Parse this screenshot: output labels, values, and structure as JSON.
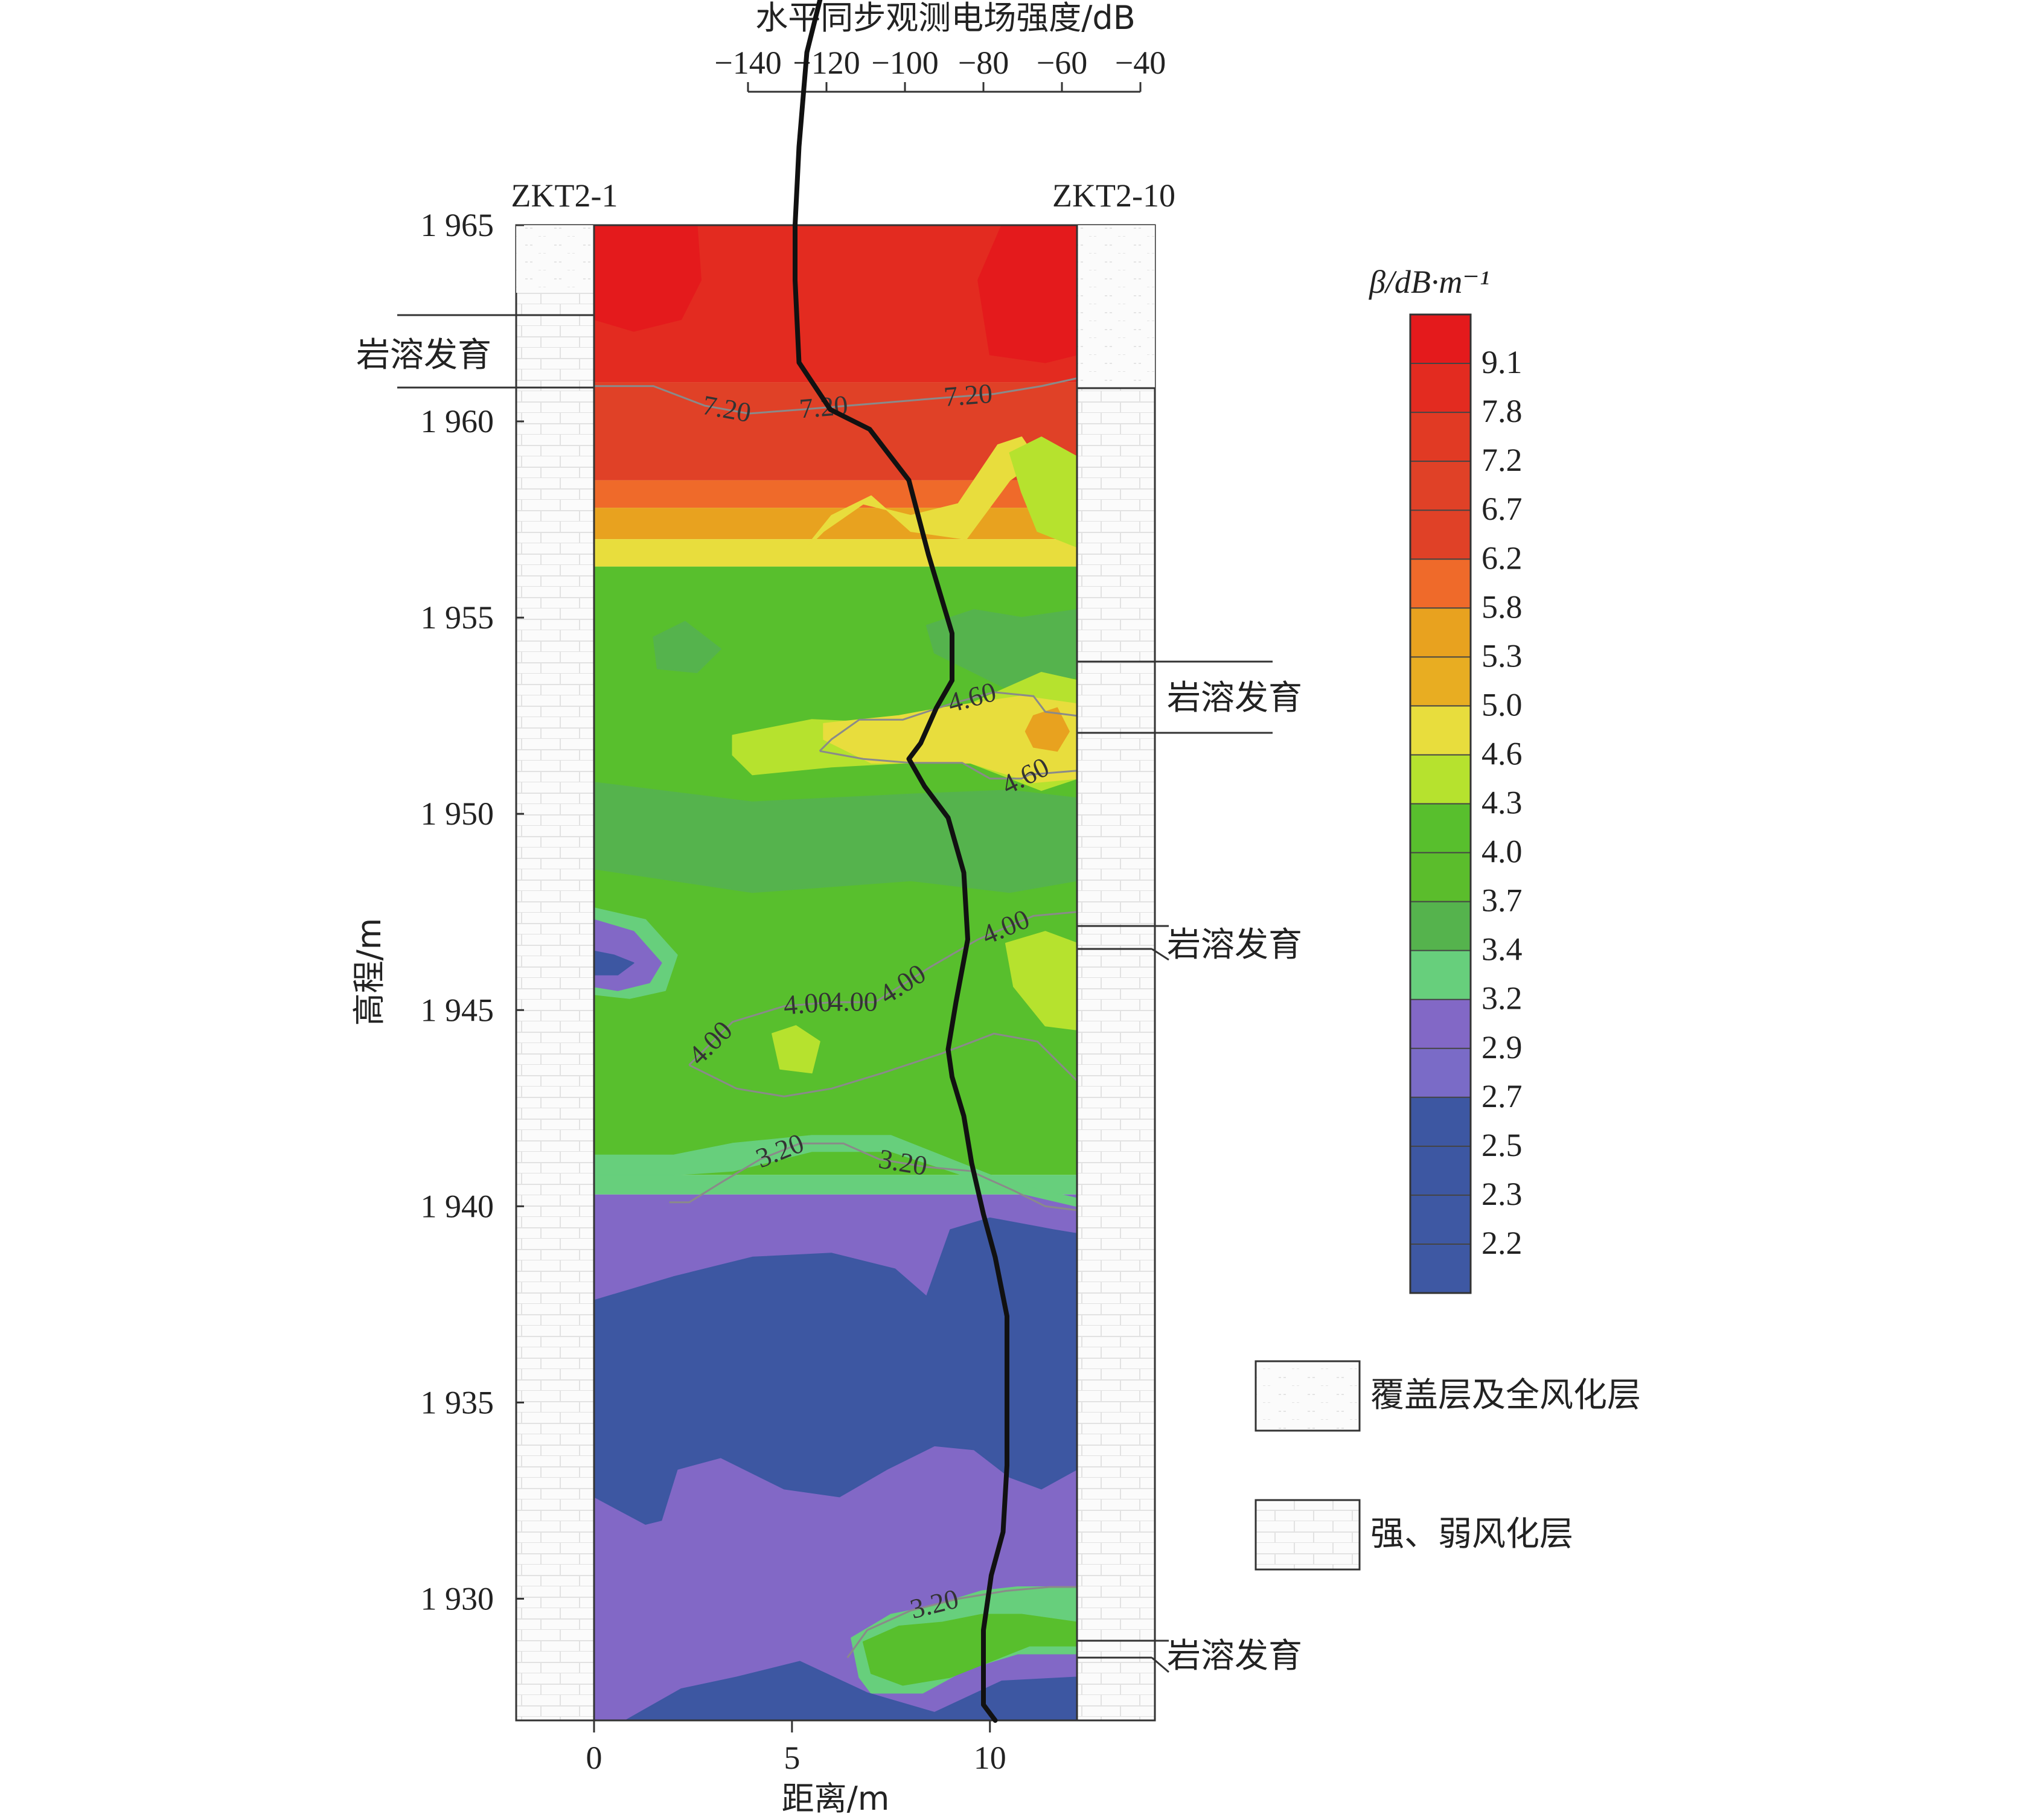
{
  "chart_data": {
    "type": "heatmap",
    "title": "",
    "xlabel": "距离/m",
    "ylabel": "高程/m",
    "xlim": [
      0,
      12.2
    ],
    "ylim": [
      1926.9,
      1965
    ],
    "x_ticks": [
      "0",
      "5",
      "10"
    ],
    "x_tick_values": [
      0,
      5,
      10
    ],
    "y_ticks": [
      "1 965",
      "1 960",
      "1 955",
      "1 950",
      "1 945",
      "1 940",
      "1 935",
      "1 930"
    ],
    "y_tick_values": [
      1965,
      1960,
      1955,
      1950,
      1945,
      1940,
      1935,
      1930
    ],
    "boreholes": {
      "left": "ZKT2-1",
      "right": "ZKT2-10"
    },
    "colorbar": {
      "title": "β/dB·m⁻¹",
      "labels": [
        "9.1",
        "7.8",
        "7.2",
        "6.7",
        "6.2",
        "5.8",
        "5.3",
        "5.0",
        "4.6",
        "4.3",
        "4.0",
        "3.7",
        "3.4",
        "3.2",
        "2.9",
        "2.7",
        "2.5",
        "2.3",
        "2.2"
      ],
      "colors": [
        "#e41a1c",
        "#e32b20",
        "#e13a24",
        "#e04127",
        "#e04127",
        "#ef6a2a",
        "#e8a21f",
        "#e8ad22",
        "#e8dd3d",
        "#b6e22e",
        "#58bf2d",
        "#5bbd2c",
        "#55b34d",
        "#67cf7c",
        "#8268c6",
        "#7a6bc7",
        "#3d57a2",
        "#3d57a2",
        "#3e58a3",
        "#3e58a3"
      ]
    },
    "heatmap_bands": [
      {
        "from": 1965.0,
        "to": 1961.0,
        "color": "#e32b20"
      },
      {
        "from": 1961.0,
        "to": 1958.5,
        "color": "#e04127"
      },
      {
        "from": 1958.5,
        "to": 1957.8,
        "color": "#ef6a2a"
      },
      {
        "from": 1957.8,
        "to": 1957.0,
        "color": "#e8a21f"
      },
      {
        "from": 1957.0,
        "to": 1956.3,
        "color": "#e8dd3d"
      },
      {
        "from": 1956.3,
        "to": 1940.8,
        "color": "#58bf2d"
      },
      {
        "from": 1940.8,
        "to": 1940.3,
        "color": "#67cf7c"
      },
      {
        "from": 1940.3,
        "to": 1926.9,
        "color": "#8268c6"
      }
    ],
    "heatmap_patches": [
      {
        "label": "red-left",
        "color": "#e41a1c",
        "x": [
          0,
          0.9,
          2.6,
          2.7,
          2.2,
          1.0,
          0
        ],
        "y": [
          1965,
          1965,
          1965,
          1963.6,
          1962.6,
          1962.3,
          1962.6
        ]
      },
      {
        "label": "red-right",
        "color": "#e41a1c",
        "x": [
          10.3,
          12.2,
          12.2,
          11.4,
          10.0,
          9.7
        ],
        "y": [
          1965,
          1965,
          1961.7,
          1961.5,
          1961.7,
          1963.6
        ]
      },
      {
        "label": "yellow-top-mid",
        "color": "#e8dd3d",
        "x": [
          5.2,
          6.0,
          7.0,
          8.0,
          9.4,
          10.5,
          11.2,
          10.8,
          10.2,
          9.2,
          8.0,
          6.8,
          5.8
        ],
        "y": [
          1956.6,
          1957.6,
          1958.1,
          1957.2,
          1957.0,
          1958.5,
          1959.0,
          1959.6,
          1959.4,
          1957.9,
          1957.6,
          1957.9,
          1957.2
        ]
      },
      {
        "label": "green-light-top-right",
        "color": "#b6e22e",
        "x": [
          10.5,
          11.3,
          12.2,
          12.2,
          11.2,
          10.8
        ],
        "y": [
          1959.2,
          1959.6,
          1959.1,
          1956.8,
          1957.2,
          1958.2
        ]
      },
      {
        "label": "green-dark-upper-right",
        "color": "#55b34d",
        "x": [
          8.4,
          9.6,
          10.8,
          12.2,
          12.2,
          10.8,
          9.6,
          8.6
        ],
        "y": [
          1954.8,
          1955.2,
          1955.0,
          1955.2,
          1953.5,
          1953.0,
          1953.6,
          1954.1
        ]
      },
      {
        "label": "green-dark-left",
        "color": "#55b34d",
        "x": [
          1.5,
          2.3,
          3.2,
          2.6,
          1.6
        ],
        "y": [
          1954.5,
          1954.9,
          1954.2,
          1953.6,
          1953.7
        ]
      },
      {
        "label": "light-green-4.6",
        "color": "#b6e22e",
        "x": [
          3.5,
          5.5,
          7.6,
          9.5,
          11.3,
          12.2,
          12.2,
          11.3,
          9.5,
          7.8,
          6.0,
          4.0,
          3.5
        ],
        "y": [
          1952.0,
          1952.4,
          1952.3,
          1952.8,
          1953.6,
          1953.4,
          1950.9,
          1950.6,
          1951.3,
          1951.3,
          1951.2,
          1951.0,
          1951.5
        ]
      },
      {
        "label": "yellow-4.6",
        "color": "#e8dd3d",
        "x": [
          5.8,
          7.7,
          8.8,
          10.8,
          12.2,
          12.2,
          11.1,
          9.5,
          7.0,
          5.8
        ],
        "y": [
          1952.3,
          1952.5,
          1952.7,
          1953.0,
          1952.8,
          1950.9,
          1950.8,
          1951.3,
          1951.3,
          1951.9
        ]
      },
      {
        "label": "orange-spot-right",
        "color": "#e8a21f",
        "x": [
          11.1,
          11.7,
          12.0,
          11.7,
          11.1,
          10.9
        ],
        "y": [
          1952.5,
          1952.7,
          1952.1,
          1951.6,
          1951.7,
          1952.1
        ]
      },
      {
        "label": "green-mid-upper-band",
        "color": "#55b34d",
        "x": [
          0,
          4.0,
          8.0,
          10.5,
          12.2,
          12.2,
          10.5,
          8.0,
          4.0,
          0
        ],
        "y": [
          1950.8,
          1950.3,
          1950.5,
          1950.6,
          1950.4,
          1948.3,
          1948.0,
          1948.3,
          1948.0,
          1948.6
        ]
      },
      {
        "label": "purple-left-1946",
        "color": "#67cf7c",
        "x": [
          0,
          1.3,
          2.1,
          1.8,
          0.9,
          0
        ],
        "y": [
          1947.6,
          1947.3,
          1946.4,
          1945.5,
          1945.3,
          1945.4
        ]
      },
      {
        "label": "purple-left-inner",
        "color": "#8268c6",
        "x": [
          0,
          1.0,
          1.7,
          1.4,
          0.6,
          0
        ],
        "y": [
          1947.3,
          1947.0,
          1946.2,
          1945.7,
          1945.5,
          1945.6
        ]
      },
      {
        "label": "blue-left-spot",
        "color": "#3d57a2",
        "x": [
          0,
          0.5,
          1.0,
          0.6,
          0
        ],
        "y": [
          1946.5,
          1946.4,
          1946.2,
          1945.9,
          1945.9
        ]
      },
      {
        "label": "light-green-right-1946",
        "color": "#b6e22e",
        "x": [
          10.4,
          11.4,
          12.2,
          12.2,
          11.4,
          10.6
        ],
        "y": [
          1946.7,
          1947.0,
          1946.7,
          1944.5,
          1944.6,
          1945.6
        ]
      },
      {
        "label": "light-green-spot-1944",
        "color": "#b6e22e",
        "x": [
          4.5,
          5.1,
          5.7,
          5.5,
          4.7
        ],
        "y": [
          1944.4,
          1944.6,
          1944.2,
          1943.4,
          1943.5
        ]
      },
      {
        "label": "teal-1940-band",
        "color": "#67cf7c",
        "x": [
          0,
          2.0,
          3.5,
          5.5,
          7.5,
          9.0,
          10.5,
          12.2,
          12.2,
          10.5,
          9.0,
          7.5,
          5.5,
          3.5,
          2.0,
          0
        ],
        "y": [
          1941.3,
          1941.3,
          1941.6,
          1941.8,
          1941.8,
          1941.2,
          1940.6,
          1940.2,
          1940.0,
          1940.4,
          1940.9,
          1941.4,
          1941.4,
          1940.9,
          1940.8,
          1940.8
        ]
      },
      {
        "label": "blue-big",
        "color": "#3d57a2",
        "x": [
          0,
          2.0,
          4.0,
          6.0,
          7.2,
          7.6,
          8.4,
          9.0,
          10.0,
          11.6,
          12.2,
          12.2,
          11.3,
          10.5,
          9.6,
          8.6,
          7.4,
          6.2,
          4.8,
          3.2,
          2.1,
          1.7,
          1.3,
          0
        ],
        "y": [
          1937.6,
          1938.2,
          1938.7,
          1938.8,
          1938.5,
          1938.4,
          1937.7,
          1939.4,
          1939.7,
          1939.4,
          1939.3,
          1933.3,
          1932.8,
          1933.1,
          1933.8,
          1933.9,
          1933.3,
          1932.6,
          1932.8,
          1933.6,
          1933.3,
          1932.0,
          1931.9,
          1932.6
        ]
      },
      {
        "label": "teal-lower-right",
        "color": "#67cf7c",
        "x": [
          6.5,
          7.5,
          8.5,
          9.8,
          10.7,
          12.2,
          12.2,
          10.7,
          9.4,
          8.3,
          7.0,
          6.7
        ],
        "y": [
          1929.0,
          1929.6,
          1929.8,
          1930.2,
          1930.3,
          1930.3,
          1928.6,
          1928.6,
          1928.2,
          1927.6,
          1927.6,
          1928.0
        ]
      },
      {
        "label": "green-lower-right-inner",
        "color": "#58bf2d",
        "x": [
          6.8,
          7.7,
          8.8,
          9.8,
          10.8,
          12.2,
          12.2,
          11.0,
          10.0,
          9.0,
          7.8,
          7.0
        ],
        "y": [
          1928.9,
          1929.3,
          1929.4,
          1929.6,
          1929.6,
          1929.4,
          1928.8,
          1928.8,
          1928.4,
          1928.0,
          1927.8,
          1928.1
        ]
      },
      {
        "label": "blue-bottom",
        "color": "#3d57a2",
        "x": [
          0,
          0.8,
          2.2,
          3.6,
          5.2,
          6.9,
          8.6,
          10.3,
          12.2,
          12.2,
          0
        ],
        "y": [
          1926.9,
          1926.9,
          1927.7,
          1928.0,
          1928.4,
          1927.6,
          1927.1,
          1927.9,
          1928.0,
          1926.9,
          1926.9
        ]
      }
    ],
    "contours": [
      {
        "level": 7.2,
        "labels": [
          "7.20",
          "7.20",
          "7.20"
        ],
        "x": [
          0,
          1.5,
          2.8,
          3.9,
          5.2,
          6.4,
          7.6,
          8.8,
          10.1,
          11.3,
          12.2
        ],
        "y": [
          1960.9,
          1960.9,
          1960.4,
          1960.2,
          1960.3,
          1960.4,
          1960.5,
          1960.6,
          1960.7,
          1960.9,
          1961.1
        ]
      },
      {
        "level": 4.6,
        "labels": [
          "4.60",
          "4.60"
        ],
        "x": [
          5.7,
          6.0,
          6.7,
          7.8,
          9.0,
          10.1,
          11.1,
          11.4,
          12.2,
          12.2,
          11.0,
          10.8,
          10.0,
          9.3,
          8.0,
          6.8,
          5.7
        ],
        "y": [
          1951.6,
          1951.9,
          1952.4,
          1952.4,
          1952.8,
          1953.1,
          1953.0,
          1952.6,
          1952.5,
          1951.1,
          1951.0,
          1950.9,
          1950.9,
          1951.3,
          1951.3,
          1951.4,
          1951.6
        ]
      },
      {
        "level": 4.0,
        "labels": [
          "4.00",
          "4.00",
          "4.00",
          "4.00",
          "4.00"
        ],
        "x": [
          2.4,
          3.5,
          4.8,
          6.0,
          7.1,
          8.5,
          9.7,
          11.1,
          12.2
        ],
        "y": [
          1943.6,
          1944.7,
          1945.1,
          1945.2,
          1945.2,
          1946.1,
          1946.8,
          1947.4,
          1947.5
        ]
      },
      {
        "level": 4.0,
        "labels": [],
        "x": [
          2.4,
          3.6,
          4.8,
          6.0,
          7.3,
          8.8,
          10.1,
          11.2,
          12.2
        ],
        "y": [
          1943.6,
          1943.0,
          1942.8,
          1943.0,
          1943.4,
          1943.9,
          1944.4,
          1944.2,
          1943.2
        ]
      },
      {
        "level": 3.2,
        "labels": [
          "3.20",
          "3.20"
        ],
        "x": [
          1.9,
          2.4,
          3.2,
          4.2,
          5.2,
          6.3,
          7.2,
          8.4,
          9.5,
          10.6,
          11.4,
          12.2
        ],
        "y": [
          1940.1,
          1940.1,
          1940.6,
          1941.2,
          1941.6,
          1941.6,
          1941.2,
          1941.0,
          1940.9,
          1940.4,
          1940.0,
          1939.9
        ]
      },
      {
        "level": 3.2,
        "labels": [
          "3.20"
        ],
        "x": [
          6.4,
          6.9,
          8.0,
          9.2,
          10.4,
          11.5,
          12.2
        ],
        "y": [
          1928.5,
          1929.2,
          1929.7,
          1930.0,
          1930.2,
          1930.3,
          1930.3
        ]
      }
    ],
    "top_axis": {
      "label": "水平同步观测电场强度/dB",
      "tick_labels": [
        "−140",
        "−120",
        "−100",
        "−80",
        "−60",
        "−40"
      ],
      "tick_values": [
        -140,
        -120,
        -100,
        -80,
        -60,
        -40
      ],
      "range": [
        -140,
        -40
      ]
    },
    "series": [
      {
        "name": "水平同步观测电场强度",
        "points": [
          [
            -118,
            1972.1
          ],
          [
            -121,
            1971.0
          ],
          [
            -125,
            1969.4
          ],
          [
            -127,
            1967.0
          ],
          [
            -128,
            1965.0
          ],
          [
            -128,
            1963.6
          ],
          [
            -127,
            1961.5
          ],
          [
            -119,
            1960.3
          ],
          [
            -109,
            1959.8
          ],
          [
            -99,
            1958.5
          ],
          [
            -94,
            1956.6
          ],
          [
            -88,
            1954.6
          ],
          [
            -88,
            1953.4
          ],
          [
            -92,
            1952.7
          ],
          [
            -96,
            1951.8
          ],
          [
            -99,
            1951.4
          ],
          [
            -95,
            1950.7
          ],
          [
            -89,
            1949.9
          ],
          [
            -85,
            1948.5
          ],
          [
            -84,
            1946.8
          ],
          [
            -87,
            1945.2
          ],
          [
            -89,
            1944.0
          ],
          [
            -88,
            1943.3
          ],
          [
            -85,
            1942.3
          ],
          [
            -83,
            1941.1
          ],
          [
            -80,
            1939.8
          ],
          [
            -77,
            1938.7
          ],
          [
            -74,
            1937.2
          ],
          [
            -74,
            1935.2
          ],
          [
            -74,
            1933.4
          ],
          [
            -75,
            1931.7
          ],
          [
            -78,
            1930.6
          ],
          [
            -80,
            1929.2
          ],
          [
            -80,
            1927.9
          ],
          [
            -80,
            1927.3
          ],
          [
            -77,
            1926.9
          ]
        ]
      }
    ],
    "annotations": [
      "岩溶发育",
      "岩溶发育",
      "岩溶发育",
      "岩溶发育"
    ],
    "legend": [
      {
        "label": "覆盖层及全风化层",
        "pattern": "cover"
      },
      {
        "label": "强、弱风化层",
        "pattern": "brick"
      }
    ]
  }
}
